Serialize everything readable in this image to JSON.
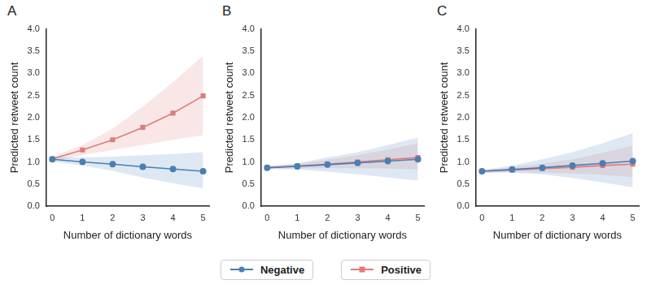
{
  "chart_data": [
    {
      "type": "line",
      "title": "A",
      "x_label": "Number of dictionary words",
      "y_label": "Predicted retweet count",
      "x": [
        0,
        1,
        2,
        3,
        4,
        5
      ],
      "xlim": [
        -0.2,
        5.2
      ],
      "xticks": [
        0,
        1,
        2,
        3,
        4,
        5
      ],
      "ylim": [
        0,
        4
      ],
      "yticks": [
        {
          "value": 0,
          "label": "0.0"
        },
        {
          "value": 0.5,
          "label": "0.5"
        },
        {
          "value": 1,
          "label": "1.0"
        },
        {
          "value": 1.5,
          "label": "1.5"
        },
        {
          "value": 2,
          "label": "2.0"
        },
        {
          "value": 2.5,
          "label": "2.5"
        },
        {
          "value": 3,
          "label": "3.0"
        },
        {
          "value": 3.5,
          "label": "3.5"
        },
        {
          "value": 4,
          "label": "4.0"
        }
      ],
      "grid": false,
      "series": [
        {
          "name": "Negative",
          "color": "#4a7fb5",
          "marker": "circle",
          "values": [
            1.06,
            1.0,
            0.95,
            0.89,
            0.84,
            0.79
          ],
          "lower": [
            1.01,
            0.92,
            0.8,
            0.65,
            0.52,
            0.4
          ],
          "upper": [
            1.11,
            1.1,
            1.12,
            1.15,
            1.18,
            1.22
          ]
        },
        {
          "name": "Positive",
          "color": "#e07b7b",
          "marker": "square",
          "values": [
            1.07,
            1.27,
            1.5,
            1.78,
            2.1,
            2.49
          ],
          "lower": [
            1.02,
            1.15,
            1.27,
            1.38,
            1.5,
            1.6
          ],
          "upper": [
            1.12,
            1.38,
            1.75,
            2.25,
            2.8,
            3.4
          ]
        }
      ]
    },
    {
      "type": "line",
      "title": "B",
      "x_label": "Number of dictionary words",
      "y_label": "Predicted retweet count",
      "x": [
        0,
        1,
        2,
        3,
        4,
        5
      ],
      "xlim": [
        -0.2,
        5.2
      ],
      "xticks": [
        0,
        1,
        2,
        3,
        4,
        5
      ],
      "ylim": [
        0,
        4
      ],
      "yticks": [
        {
          "value": 0,
          "label": "0.0"
        },
        {
          "value": 0.5,
          "label": "0.5"
        },
        {
          "value": 1,
          "label": "1.0"
        },
        {
          "value": 1.5,
          "label": "1.5"
        },
        {
          "value": 2,
          "label": "2.0"
        },
        {
          "value": 2.5,
          "label": "2.5"
        },
        {
          "value": 3,
          "label": "3.0"
        },
        {
          "value": 3.5,
          "label": "3.5"
        },
        {
          "value": 4,
          "label": "4.0"
        }
      ],
      "grid": false,
      "legend": "bottom",
      "series": [
        {
          "name": "Negative",
          "color": "#4a7fb5",
          "marker": "circle",
          "values": [
            0.87,
            0.9,
            0.94,
            0.98,
            1.02,
            1.06
          ],
          "lower": [
            0.84,
            0.83,
            0.78,
            0.72,
            0.65,
            0.58
          ],
          "upper": [
            0.9,
            0.97,
            1.1,
            1.22,
            1.38,
            1.55
          ]
        },
        {
          "name": "Positive",
          "color": "#e07b7b",
          "marker": "square",
          "values": [
            0.87,
            0.91,
            0.95,
            1.0,
            1.05,
            1.1
          ],
          "lower": [
            0.84,
            0.86,
            0.86,
            0.86,
            0.85,
            0.83
          ],
          "upper": [
            0.9,
            0.96,
            1.05,
            1.15,
            1.28,
            1.42
          ]
        }
      ]
    },
    {
      "type": "line",
      "title": "C",
      "x_label": "Number of dictionary words",
      "y_label": "Predicted retweet count",
      "x": [
        0,
        1,
        2,
        3,
        4,
        5
      ],
      "xlim": [
        -0.2,
        5.2
      ],
      "xticks": [
        0,
        1,
        2,
        3,
        4,
        5
      ],
      "ylim": [
        0,
        4
      ],
      "yticks": [
        {
          "value": 0,
          "label": "0.0"
        },
        {
          "value": 0.5,
          "label": "0.5"
        },
        {
          "value": 1,
          "label": "1.0"
        },
        {
          "value": 1.5,
          "label": "1.5"
        },
        {
          "value": 2,
          "label": "2.0"
        },
        {
          "value": 2.5,
          "label": "2.5"
        },
        {
          "value": 3,
          "label": "3.0"
        },
        {
          "value": 3.5,
          "label": "3.5"
        },
        {
          "value": 4,
          "label": "4.0"
        }
      ],
      "grid": false,
      "series": [
        {
          "name": "Negative",
          "color": "#4a7fb5",
          "marker": "circle",
          "values": [
            0.79,
            0.83,
            0.87,
            0.92,
            0.97,
            1.02
          ],
          "lower": [
            0.76,
            0.76,
            0.72,
            0.64,
            0.54,
            0.43
          ],
          "upper": [
            0.82,
            0.92,
            1.06,
            1.22,
            1.42,
            1.65
          ]
        },
        {
          "name": "Positive",
          "color": "#e07b7b",
          "marker": "square",
          "values": [
            0.79,
            0.82,
            0.85,
            0.88,
            0.92,
            0.95
          ],
          "lower": [
            0.76,
            0.77,
            0.76,
            0.74,
            0.71,
            0.66
          ],
          "upper": [
            0.82,
            0.88,
            0.96,
            1.06,
            1.2,
            1.37
          ]
        }
      ]
    }
  ]
}
